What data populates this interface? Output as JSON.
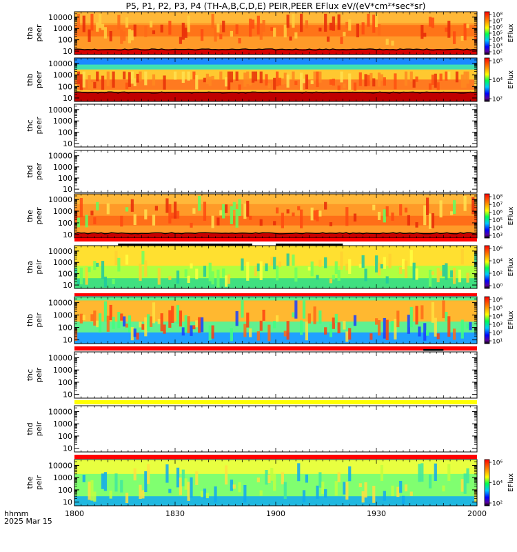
{
  "chart_data": {
    "type": "heatmap",
    "title": "P5, P1, P2, P3, P4 (TH-A,B,C,D,E) PEIR,PEER EFlux eV/(eV*cm²*sec*sr)",
    "x_axis": {
      "label_line1": "hhmm",
      "label_line2": "2025 Mar 15",
      "range": [
        "1800",
        "2000"
      ],
      "ticks": [
        "1800",
        "1830",
        "1900",
        "1930",
        "2000"
      ]
    },
    "y_axis": {
      "scale": "log",
      "range": [
        5,
        30000
      ],
      "ticks": [
        "10",
        "100",
        "1000",
        "10000"
      ]
    },
    "colorbar_label": "EFlux",
    "panels": [
      {
        "id": "tha-peer",
        "probe": "tha",
        "species": "peer",
        "data_present": true,
        "colorbar_ticks": [
          "10²",
          "10³",
          "10⁴",
          "10⁵",
          "10⁶",
          "10⁷",
          "10⁸"
        ],
        "dominant_flux": "10⁵–10⁶ (orange)"
      },
      {
        "id": "thb-peer",
        "probe": "thb",
        "species": "peer",
        "data_present": true,
        "colorbar_ticks": [
          "10²",
          "10⁴",
          "10⁵"
        ],
        "dominant_flux": "10⁴–10⁵ (yellow/orange, green above 3000 eV)"
      },
      {
        "id": "thc-peer",
        "probe": "thc",
        "species": "peer",
        "data_present": false,
        "colorbar_ticks": []
      },
      {
        "id": "thd-peer",
        "probe": "thd",
        "species": "peer",
        "data_present": false,
        "colorbar_ticks": []
      },
      {
        "id": "the-peer",
        "probe": "the",
        "species": "peer",
        "data_present": true,
        "colorbar_ticks": [
          "10³",
          "10⁴",
          "10⁵",
          "10⁶",
          "10⁷",
          "10⁸"
        ],
        "dominant_flux": "10⁶–10⁷ (orange)"
      },
      {
        "id": "tha-peir",
        "probe": "tha",
        "species": "peir",
        "data_present": true,
        "colorbar_ticks": [
          "10⁰",
          "10²",
          "10⁴",
          "10⁶"
        ],
        "dominant_flux": "10⁴ (yellow/green)"
      },
      {
        "id": "thb-peir",
        "probe": "thb",
        "species": "peir",
        "data_present": true,
        "colorbar_ticks": [
          "10¹",
          "10²",
          "10³",
          "10⁴",
          "10⁵",
          "10⁶"
        ],
        "dominant_flux": "10⁴–10⁵ (yellow/orange)"
      },
      {
        "id": "thc-peir",
        "probe": "thc",
        "species": "peir",
        "data_present": false,
        "colorbar_ticks": []
      },
      {
        "id": "thd-peir",
        "probe": "thd",
        "species": "peir",
        "data_present": false,
        "colorbar_ticks": []
      },
      {
        "id": "the-peir",
        "probe": "the",
        "species": "peir",
        "data_present": true,
        "colorbar_ticks": [
          "10²",
          "10⁴",
          "10⁶"
        ],
        "dominant_flux": "10⁴ (yellow/green)"
      }
    ],
    "separator_bars": [
      {
        "after_panel": "the-peer",
        "color": "#ff0000"
      },
      {
        "after_panel": "tha-peir",
        "color": "#ff0000"
      },
      {
        "after_panel": "thb-peir",
        "color": "#ff0000"
      },
      {
        "after_panel": "thc-peir",
        "color": "#ffff00"
      },
      {
        "after_panel": "thd-peir",
        "color": "#ff0000"
      }
    ],
    "mode_bars": [
      {
        "after_panel": "the-peer",
        "from": "1813",
        "to": "1853",
        "color": "#000000"
      },
      {
        "after_panel": "the-peer",
        "from": "1900",
        "to": "1920",
        "color": "#000000"
      },
      {
        "after_panel": "thb-peir",
        "from": "1944",
        "to": "1950",
        "color": "#000000"
      }
    ]
  }
}
